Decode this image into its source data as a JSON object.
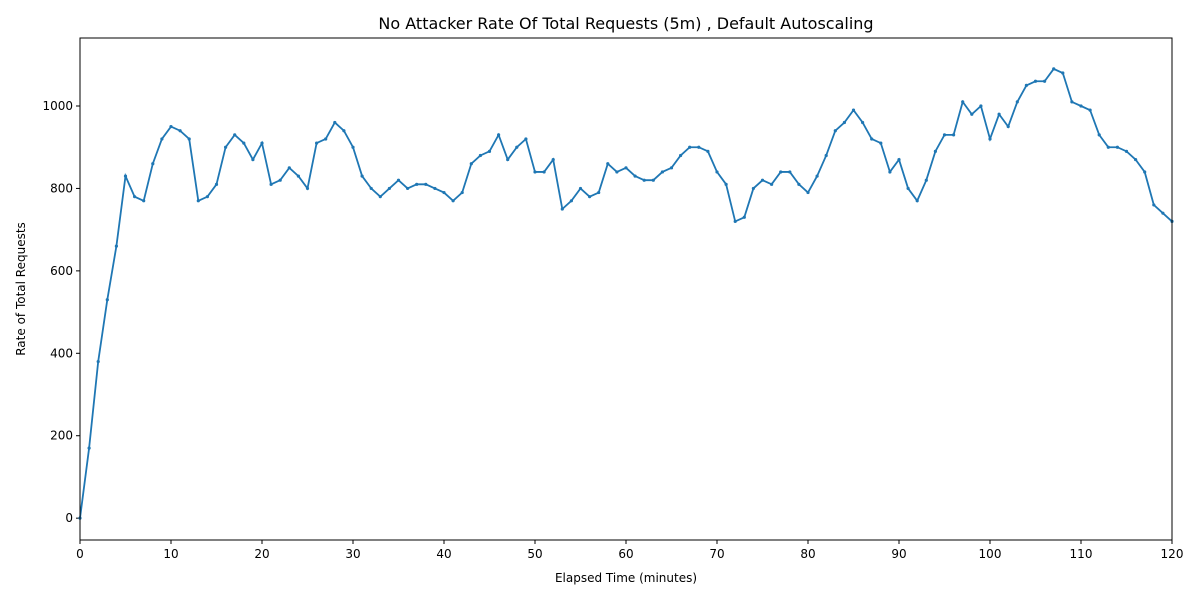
{
  "chart_data": {
    "type": "line",
    "title": "No Attacker Rate Of Total Requests (5m) , Default Autoscaling",
    "x_label": "Elapsed Time (minutes)",
    "y_label": "Rate of Total Requests",
    "x": [
      0,
      1,
      2,
      3,
      4,
      5,
      6,
      7,
      8,
      9,
      10,
      11,
      12,
      13,
      14,
      15,
      16,
      17,
      18,
      19,
      20,
      21,
      22,
      23,
      24,
      25,
      26,
      27,
      28,
      29,
      30,
      31,
      32,
      33,
      34,
      35,
      36,
      37,
      38,
      39,
      40,
      41,
      42,
      43,
      44,
      45,
      46,
      47,
      48,
      49,
      50,
      51,
      52,
      53,
      54,
      55,
      56,
      57,
      58,
      59,
      60,
      61,
      62,
      63,
      64,
      65,
      66,
      67,
      68,
      69,
      70,
      71,
      72,
      73,
      74,
      75,
      76,
      77,
      78,
      79,
      80,
      81,
      82,
      83,
      84,
      85,
      86,
      87,
      88,
      89,
      90,
      91,
      92,
      93,
      94,
      95,
      96,
      97,
      98,
      99,
      100,
      101,
      102,
      103,
      104,
      105,
      106,
      107,
      108,
      109,
      110,
      111,
      112,
      113,
      114,
      115,
      116,
      117,
      118,
      119,
      120
    ],
    "series": [
      {
        "name": "Rate of Total Requests",
        "color": "#1f77b4",
        "values": [
          0,
          170,
          380,
          530,
          660,
          830,
          780,
          770,
          860,
          920,
          950,
          940,
          920,
          770,
          780,
          810,
          900,
          930,
          910,
          870,
          910,
          810,
          820,
          850,
          830,
          800,
          910,
          920,
          960,
          940,
          900,
          830,
          800,
          780,
          800,
          820,
          800,
          810,
          810,
          800,
          790,
          770,
          790,
          860,
          880,
          890,
          930,
          870,
          900,
          920,
          840,
          840,
          870,
          750,
          770,
          800,
          780,
          790,
          860,
          840,
          850,
          830,
          820,
          820,
          840,
          850,
          880,
          900,
          900,
          890,
          840,
          810,
          720,
          730,
          800,
          820,
          810,
          840,
          840,
          810,
          790,
          830,
          880,
          940,
          960,
          990,
          960,
          920,
          910,
          840,
          870,
          800,
          770,
          820,
          890,
          930,
          930,
          1010,
          980,
          1000,
          920,
          980,
          950,
          1010,
          1050,
          1060,
          1060,
          1090,
          1080,
          1010,
          1000,
          990,
          930,
          900,
          900,
          890,
          870,
          840,
          760,
          740,
          720
        ]
      }
    ],
    "xlim": [
      0,
      120
    ],
    "ylim": [
      -53,
      1165
    ],
    "xticks": [
      0,
      10,
      20,
      30,
      40,
      50,
      60,
      70,
      80,
      90,
      100,
      110,
      120
    ],
    "yticks": [
      0,
      200,
      400,
      600,
      800,
      1000
    ]
  }
}
